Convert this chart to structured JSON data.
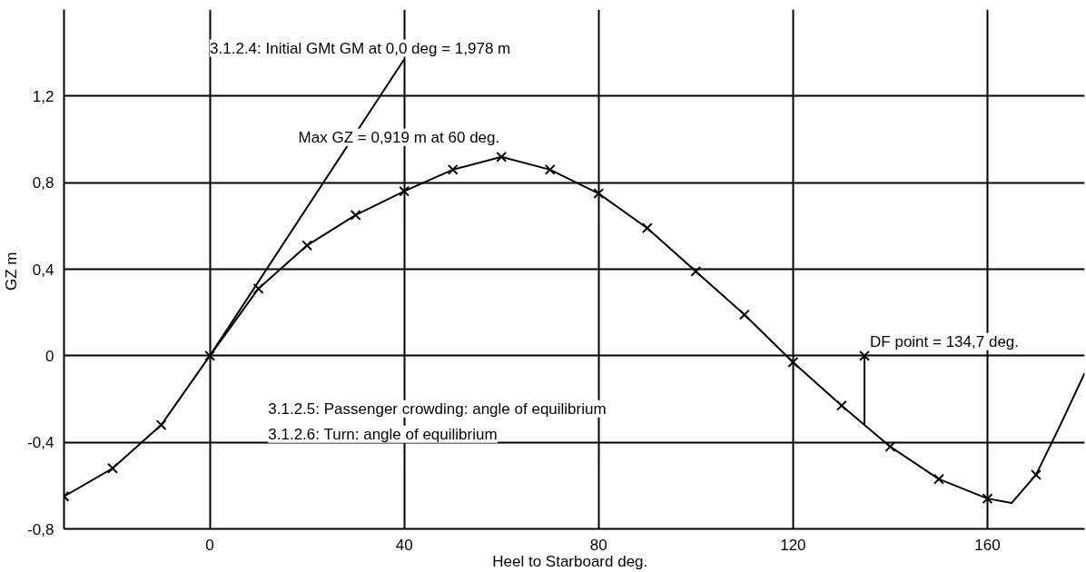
{
  "chart_data": {
    "type": "line",
    "xlabel": "Heel to Starboard   deg.",
    "ylabel": "GZ  m",
    "xlim": [
      -30,
      180
    ],
    "ylim": [
      -0.8,
      1.6
    ],
    "xticks": [
      0,
      40,
      80,
      120,
      160
    ],
    "yticks": [
      {
        "value": -0.8,
        "label": "-0,8"
      },
      {
        "value": -0.4,
        "label": "-0,4"
      },
      0,
      {
        "value": 0.4,
        "label": "0,4"
      },
      {
        "value": 0.8,
        "label": "0,8"
      },
      {
        "value": 1.2,
        "label": "1,2"
      }
    ],
    "grid": true,
    "series": [
      {
        "color": "#000000",
        "marker": "none",
        "x": [
          -30,
          -20,
          -10,
          0,
          10,
          20,
          30,
          40,
          50,
          60,
          70,
          80,
          90,
          100,
          110,
          120,
          130,
          140,
          150,
          160,
          165,
          170,
          175,
          180
        ],
        "values": [
          -0.65,
          -0.52,
          -0.32,
          0,
          0.31,
          0.51,
          0.65,
          0.76,
          0.86,
          0.919,
          0.86,
          0.75,
          0.59,
          0.39,
          0.19,
          -0.03,
          -0.23,
          -0.42,
          -0.57,
          -0.66,
          -0.68,
          -0.55,
          -0.32,
          -0.08
        ]
      },
      {
        "type": "scatter",
        "color": "#000000",
        "marker": "cross",
        "x": [
          -30,
          -20,
          -10,
          0,
          10,
          20,
          30,
          40,
          50,
          60,
          70,
          80,
          90,
          100,
          110,
          120,
          130,
          140,
          150,
          160,
          170
        ],
        "values": [
          -0.65,
          -0.52,
          -0.32,
          0,
          0.31,
          0.51,
          0.65,
          0.76,
          0.86,
          0.919,
          0.86,
          0.75,
          0.59,
          0.39,
          0.19,
          -0.03,
          -0.23,
          -0.42,
          -0.57,
          -0.66,
          -0.55
        ]
      },
      {
        "color": "#000000",
        "marker": "none",
        "x": [
          0,
          40
        ],
        "values": [
          0,
          1.37
        ]
      },
      {
        "color": "#000000",
        "marker": "none",
        "x": [
          134.7,
          134.7
        ],
        "values": [
          0,
          -0.32
        ]
      },
      {
        "type": "scatter",
        "color": "#000000",
        "marker": "cross",
        "x": [
          134.7
        ],
        "values": [
          0
        ]
      }
    ],
    "annotations": [
      "3.1.2.4: Initial GMt GM at 0,0 deg = 1,978 m",
      {
        "text": "Max GZ = 0,919 m at 60 deg.",
        "x": 60,
        "y": 0.919
      },
      "3.1.2.5: Passenger crowding: angle of equilibrium",
      "3.1.2.6: Turn: angle of equilibrium",
      {
        "text": "DF point = 134,7 deg.",
        "x": 134.7,
        "y": 0
      }
    ]
  }
}
